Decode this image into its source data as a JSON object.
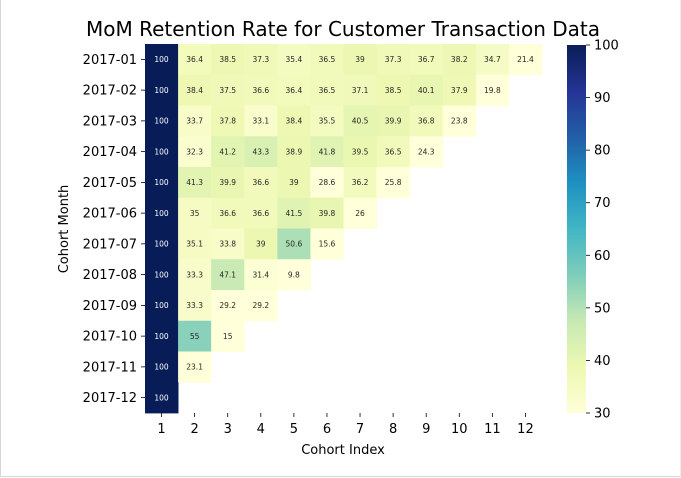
{
  "chart_data": {
    "type": "heatmap",
    "title": "MoM Retention Rate for Customer Transaction Data",
    "xlabel": "Cohort Index",
    "ylabel": "Cohort Month",
    "x_categories": [
      "1",
      "2",
      "3",
      "4",
      "5",
      "6",
      "7",
      "8",
      "9",
      "10",
      "11",
      "12"
    ],
    "y_categories": [
      "2017-01",
      "2017-02",
      "2017-03",
      "2017-04",
      "2017-05",
      "2017-06",
      "2017-07",
      "2017-08",
      "2017-09",
      "2017-10",
      "2017-11",
      "2017-12"
    ],
    "values": [
      [
        100,
        36.4,
        38.5,
        37.3,
        35.4,
        36.5,
        39,
        37.3,
        36.7,
        38.2,
        34.7,
        21.4
      ],
      [
        100,
        38.4,
        37.5,
        36.6,
        36.4,
        36.5,
        37.1,
        38.5,
        40.1,
        37.9,
        19.8
      ],
      [
        100,
        33.7,
        37.8,
        33.1,
        38.4,
        35.5,
        40.5,
        39.9,
        36.8,
        23.8
      ],
      [
        100,
        32.3,
        41.2,
        43.3,
        38.9,
        41.8,
        39.5,
        36.5,
        24.3
      ],
      [
        100,
        41.3,
        39.9,
        36.6,
        39,
        28.6,
        36.2,
        25.8
      ],
      [
        100,
        35,
        36.6,
        36.6,
        41.5,
        39.8,
        26
      ],
      [
        100,
        35.1,
        33.8,
        39,
        50.6,
        15.6
      ],
      [
        100,
        33.3,
        47.1,
        31.4,
        9.8
      ],
      [
        100,
        33.3,
        29.2,
        29.2
      ],
      [
        100,
        55,
        15
      ],
      [
        100,
        23.1
      ],
      [
        100
      ]
    ],
    "value_labels": [
      [
        "100",
        "36.4",
        "38.5",
        "37.3",
        "35.4",
        "36.5",
        "39",
        "37.3",
        "36.7",
        "38.2",
        "34.7",
        "21.4"
      ],
      [
        "100",
        "38.4",
        "37.5",
        "36.6",
        "36.4",
        "36.5",
        "37.1",
        "38.5",
        "40.1",
        "37.9",
        "19.8"
      ],
      [
        "100",
        "33.7",
        "37.8",
        "33.1",
        "38.4",
        "35.5",
        "40.5",
        "39.9",
        "36.8",
        "23.8"
      ],
      [
        "100",
        "32.3",
        "41.2",
        "43.3",
        "38.9",
        "41.8",
        "39.5",
        "36.5",
        "24.3"
      ],
      [
        "100",
        "41.3",
        "39.9",
        "36.6",
        "39",
        "28.6",
        "36.2",
        "25.8"
      ],
      [
        "100",
        "35",
        "36.6",
        "36.6",
        "41.5",
        "39.8",
        "26"
      ],
      [
        "100",
        "35.1",
        "33.8",
        "39",
        "50.6",
        "15.6"
      ],
      [
        "100",
        "33.3",
        "47.1",
        "31.4",
        "9.8"
      ],
      [
        "100",
        "33.3",
        "29.2",
        "29.2"
      ],
      [
        "100",
        "55",
        "15"
      ],
      [
        "100",
        "23.1"
      ],
      [
        "100"
      ]
    ],
    "colormap": "YlGnBu",
    "colormap_stops": [
      "#ffffd9",
      "#edf8b1",
      "#c7e9b4",
      "#7fcdbb",
      "#41b6c4",
      "#1d91c0",
      "#225ea8",
      "#253494",
      "#081d58"
    ],
    "vmin": 30,
    "vmax": 100,
    "colorbar_ticks": [
      "30",
      "40",
      "50",
      "60",
      "70",
      "80",
      "90",
      "100"
    ],
    "colorbar_tick_values": [
      30,
      40,
      50,
      60,
      70,
      80,
      90,
      100
    ]
  }
}
